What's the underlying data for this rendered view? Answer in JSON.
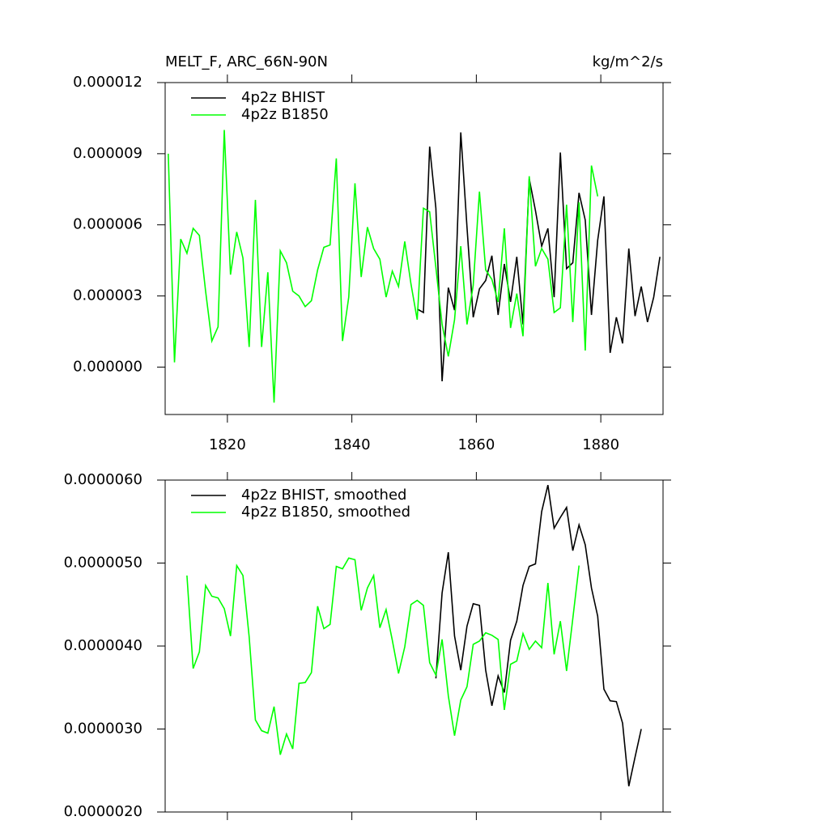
{
  "chart_data": [
    {
      "type": "line",
      "title": "MELT_F, ARC_66N-90N",
      "units": "kg/m^2/s",
      "xlim": [
        1810,
        1890
      ],
      "xticks": [
        1820,
        1840,
        1860,
        1880
      ],
      "xtick_labels": true,
      "ylim": [
        -2e-06,
        1.2e-05
      ],
      "yticks": [
        {
          "value": 0,
          "label": "0.000000"
        },
        {
          "value": 3e-06,
          "label": "0.000003"
        },
        {
          "value": 6e-06,
          "label": "0.000006"
        },
        {
          "value": 9e-06,
          "label": "0.000009"
        },
        {
          "value": 1.2e-05,
          "label": "0.000012"
        }
      ],
      "legend": "top-left",
      "x": [
        1810.5,
        1811.5,
        1812.5,
        1813.5,
        1814.5,
        1815.5,
        1816.5,
        1817.5,
        1818.5,
        1819.5,
        1820.5,
        1821.5,
        1822.5,
        1823.5,
        1824.5,
        1825.5,
        1826.5,
        1827.5,
        1828.5,
        1829.5,
        1830.5,
        1831.5,
        1832.5,
        1833.5,
        1834.5,
        1835.5,
        1836.5,
        1837.5,
        1838.5,
        1839.5,
        1840.5,
        1841.5,
        1842.5,
        1843.5,
        1844.5,
        1845.5,
        1846.5,
        1847.5,
        1848.5,
        1849.5,
        1850.5,
        1851.5,
        1852.5,
        1853.5,
        1854.5,
        1855.5,
        1856.5,
        1857.5,
        1858.5,
        1859.5,
        1860.5,
        1861.5,
        1862.5,
        1863.5,
        1864.5,
        1865.5,
        1866.5,
        1867.5,
        1868.5,
        1869.5,
        1870.5,
        1871.5,
        1872.5,
        1873.5,
        1874.5,
        1875.5,
        1876.5,
        1877.5,
        1878.5,
        1879.5,
        1880.5,
        1881.5,
        1882.5,
        1883.5,
        1884.5,
        1885.5,
        1886.5,
        1887.5,
        1888.5,
        1889.5
      ],
      "series": [
        {
          "name": "4p2z BHIST",
          "color": "#000000",
          "values": [
            null,
            null,
            null,
            null,
            null,
            null,
            null,
            null,
            null,
            null,
            null,
            null,
            null,
            null,
            null,
            null,
            null,
            null,
            null,
            null,
            null,
            null,
            null,
            null,
            null,
            null,
            null,
            null,
            null,
            null,
            null,
            null,
            null,
            null,
            null,
            null,
            null,
            null,
            null,
            null,
            2.45e-06,
            2.3e-06,
            9.3e-06,
            6.7e-06,
            -6e-07,
            3.35e-06,
            2.4e-06,
            9.9e-06,
            5.9e-06,
            2.1e-06,
            3.3e-06,
            3.65e-06,
            4.7e-06,
            2.2e-06,
            4.35e-06,
            2.75e-06,
            4.65e-06,
            1.8e-06,
            7.95e-06,
            6.6e-06,
            5.1e-06,
            5.85e-06,
            2.95e-06,
            9.05e-06,
            4.15e-06,
            4.4e-06,
            7.35e-06,
            6.2e-06,
            2.2e-06,
            5.35e-06,
            7.2e-06,
            6e-07,
            2.1e-06,
            1e-06,
            5e-06,
            2.15e-06,
            3.4e-06,
            1.9e-06,
            2.95e-06,
            4.65e-06
          ]
        },
        {
          "name": "4p2z B1850",
          "color": "#00ff00",
          "values": [
            9e-06,
            2e-07,
            5.4e-06,
            4.8e-06,
            5.85e-06,
            5.55e-06,
            3.2e-06,
            1.1e-06,
            1.7e-06,
            1e-05,
            3.9e-06,
            5.7e-06,
            4.6e-06,
            8.5e-07,
            7.05e-06,
            8.5e-07,
            4e-06,
            -1.5e-06,
            4.9e-06,
            4.4e-06,
            3.2e-06,
            3e-06,
            2.55e-06,
            2.8e-06,
            4.1e-06,
            5.05e-06,
            5.15e-06,
            8.8e-06,
            1.1e-06,
            2.95e-06,
            7.75e-06,
            3.8e-06,
            5.9e-06,
            5e-06,
            4.55e-06,
            2.95e-06,
            4.05e-06,
            3.4e-06,
            5.3e-06,
            3.5e-06,
            2e-06,
            6.7e-06,
            6.55e-06,
            4.2e-06,
            1.8e-06,
            4.5e-07,
            2e-06,
            5.1e-06,
            1.8e-06,
            3.45e-06,
            7.4e-06,
            4.1e-06,
            3.7e-06,
            2.75e-06,
            5.85e-06,
            1.65e-06,
            3.1e-06,
            1.3e-06,
            8.05e-06,
            4.25e-06,
            5e-06,
            4.55e-06,
            2.3e-06,
            2.5e-06,
            6.85e-06,
            1.9e-06,
            6.95e-06,
            7e-07,
            8.5e-06,
            7.2e-06,
            null,
            null,
            null,
            null,
            null,
            null,
            null,
            null,
            null,
            null
          ]
        }
      ]
    },
    {
      "type": "line",
      "xlim": [
        1810,
        1890
      ],
      "xticks": [
        1820,
        1840,
        1860,
        1880
      ],
      "xtick_labels": false,
      "ylim": [
        2e-06,
        6e-06
      ],
      "yticks": [
        {
          "value": 2e-06,
          "label": "0.0000020"
        },
        {
          "value": 3e-06,
          "label": "0.0000030"
        },
        {
          "value": 4e-06,
          "label": "0.0000040"
        },
        {
          "value": 5e-06,
          "label": "0.0000050"
        },
        {
          "value": 6e-06,
          "label": "0.0000060"
        }
      ],
      "legend": "top-left",
      "x": [
        1813.5,
        1814.5,
        1815.5,
        1816.5,
        1817.5,
        1818.5,
        1819.5,
        1820.5,
        1821.5,
        1822.5,
        1823.5,
        1824.5,
        1825.5,
        1826.5,
        1827.5,
        1828.5,
        1829.5,
        1830.5,
        1831.5,
        1832.5,
        1833.5,
        1834.5,
        1835.5,
        1836.5,
        1837.5,
        1838.5,
        1839.5,
        1840.5,
        1841.5,
        1842.5,
        1843.5,
        1844.5,
        1845.5,
        1846.5,
        1847.5,
        1848.5,
        1849.5,
        1850.5,
        1851.5,
        1852.5,
        1853.5,
        1854.5,
        1855.5,
        1856.5,
        1857.5,
        1858.5,
        1859.5,
        1860.5,
        1861.5,
        1862.5,
        1863.5,
        1864.5,
        1865.5,
        1866.5,
        1867.5,
        1868.5,
        1869.5,
        1870.5,
        1871.5,
        1872.5,
        1873.5,
        1874.5,
        1875.5,
        1876.5,
        1877.5,
        1878.5,
        1879.5,
        1880.5,
        1881.5,
        1882.5,
        1883.5,
        1884.5,
        1885.5,
        1886.5
      ],
      "series": [
        {
          "name": "4p2z BHIST, smoothed",
          "color": "#000000",
          "values": [
            null,
            null,
            null,
            null,
            null,
            null,
            null,
            null,
            null,
            null,
            null,
            null,
            null,
            null,
            null,
            null,
            null,
            null,
            null,
            null,
            null,
            null,
            null,
            null,
            null,
            null,
            null,
            null,
            null,
            null,
            null,
            null,
            null,
            null,
            null,
            null,
            null,
            null,
            null,
            null,
            3.61e-06,
            4.64e-06,
            5.13e-06,
            4.12e-06,
            3.71e-06,
            4.24e-06,
            4.51e-06,
            4.49e-06,
            3.71e-06,
            3.28e-06,
            3.64e-06,
            3.44e-06,
            4.07e-06,
            4.3e-06,
            4.73e-06,
            4.96e-06,
            4.99e-06,
            5.62e-06,
            5.94e-06,
            5.42e-06,
            5.55e-06,
            5.67e-06,
            5.15e-06,
            5.46e-06,
            5.22e-06,
            4.7e-06,
            4.36e-06,
            3.48e-06,
            3.34e-06,
            3.33e-06,
            3.07e-06,
            2.31e-06,
            2.66e-06,
            3e-06
          ]
        },
        {
          "name": "4p2z B1850, smoothed",
          "color": "#00ff00",
          "values": [
            4.85e-06,
            3.73e-06,
            3.93e-06,
            4.73e-06,
            4.6e-06,
            4.58e-06,
            4.45e-06,
            4.12e-06,
            4.97e-06,
            4.85e-06,
            4.11e-06,
            3.11e-06,
            2.98e-06,
            2.95e-06,
            3.27e-06,
            2.69e-06,
            2.94e-06,
            2.76e-06,
            3.55e-06,
            3.56e-06,
            3.68e-06,
            4.48e-06,
            4.21e-06,
            4.26e-06,
            4.96e-06,
            4.93e-06,
            5.06e-06,
            5.04e-06,
            4.43e-06,
            4.7e-06,
            4.85e-06,
            4.22e-06,
            4.44e-06,
            4.07e-06,
            3.67e-06,
            3.99e-06,
            4.5e-06,
            4.55e-06,
            4.49e-06,
            3.8e-06,
            3.65e-06,
            4.08e-06,
            3.4e-06,
            2.92e-06,
            3.35e-06,
            3.51e-06,
            4.02e-06,
            4.06e-06,
            4.16e-06,
            4.13e-06,
            4.08e-06,
            3.23e-06,
            3.78e-06,
            3.82e-06,
            4.15e-06,
            3.96e-06,
            4.06e-06,
            3.98e-06,
            4.76e-06,
            3.9e-06,
            4.3e-06,
            3.7e-06,
            4.33e-06,
            4.97e-06,
            null,
            null,
            null,
            null,
            null,
            null,
            null,
            null,
            null,
            null
          ]
        }
      ]
    }
  ]
}
